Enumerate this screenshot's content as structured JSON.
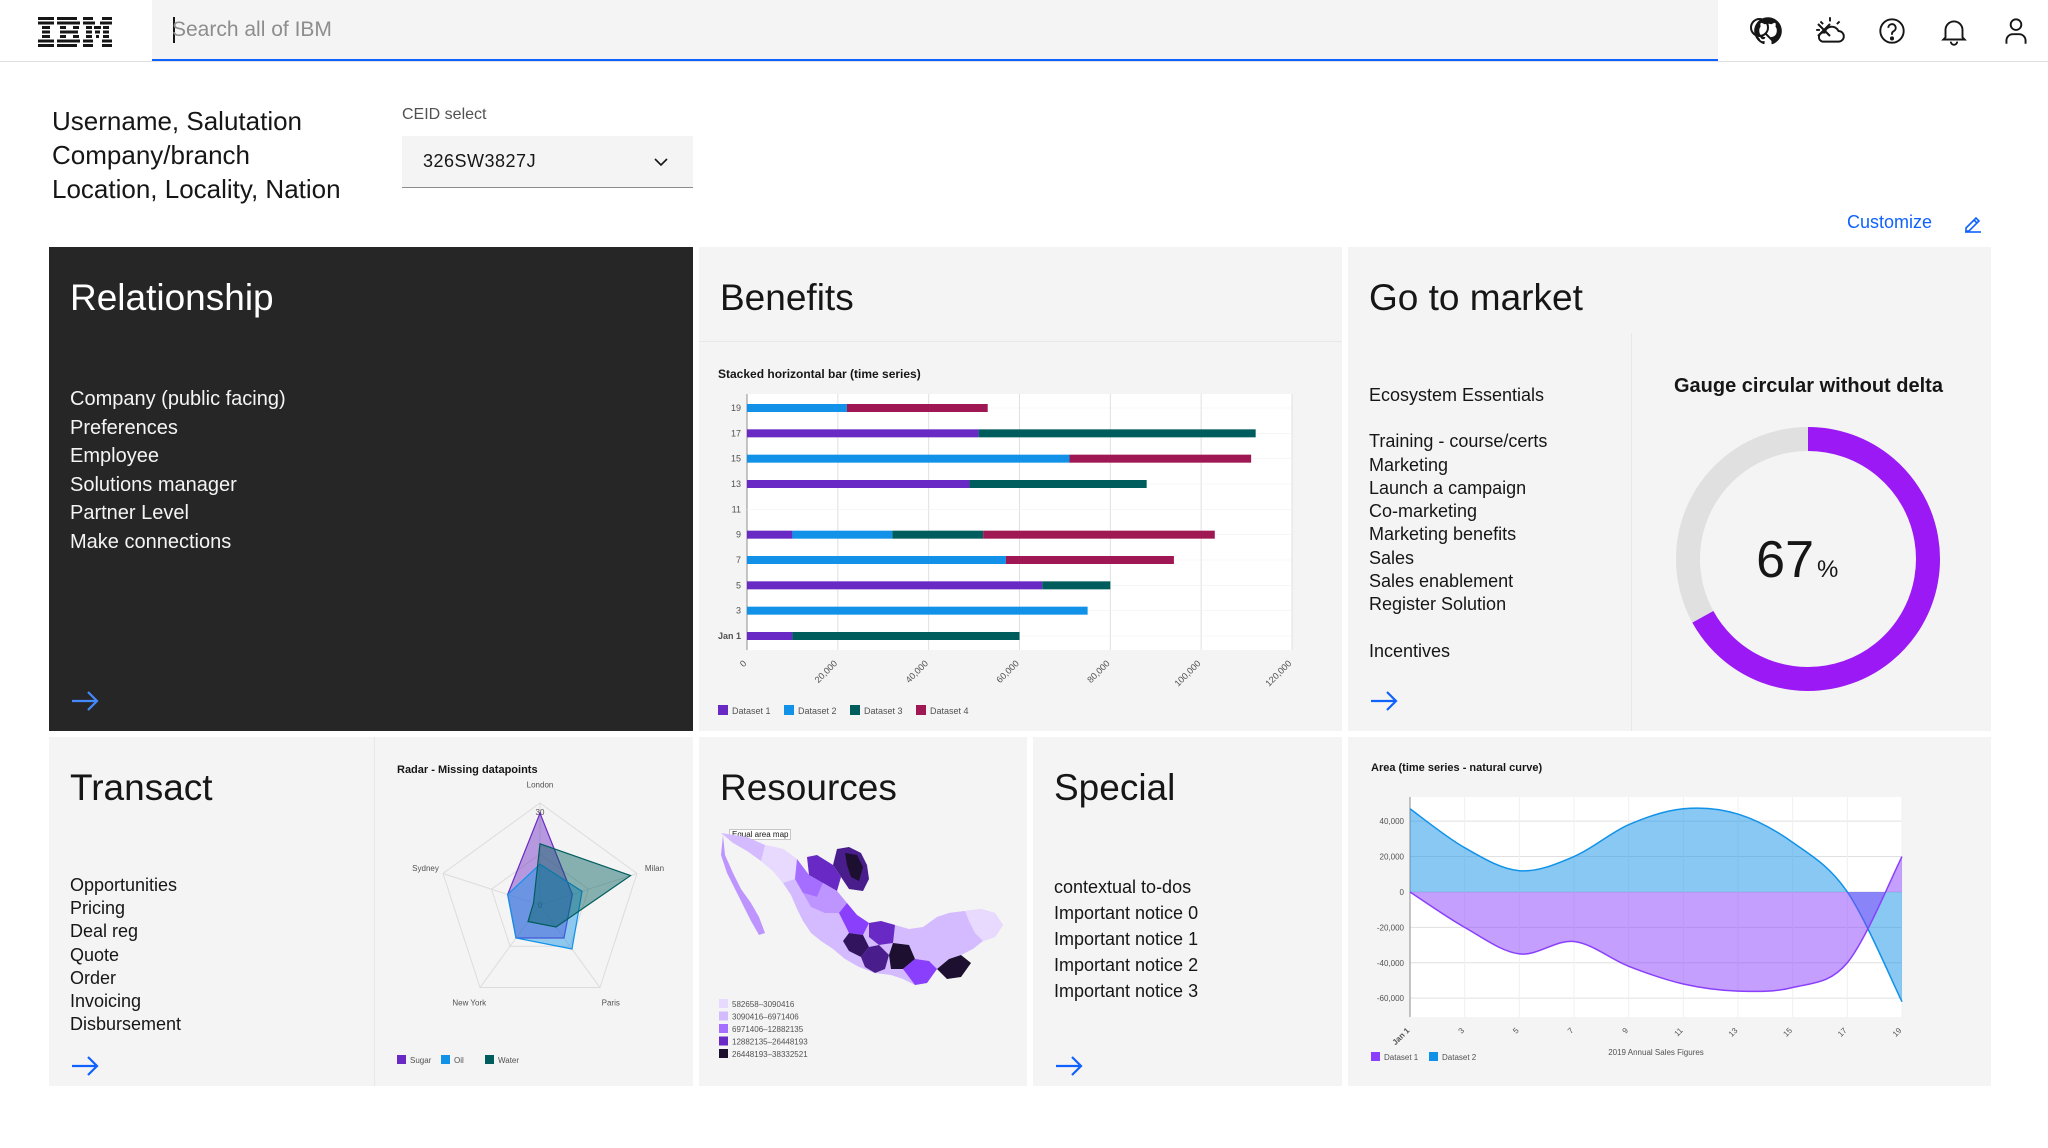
{
  "header": {
    "brand": "IBM",
    "search_placeholder": "Search all of IBM",
    "icons": [
      "search-icon",
      "close-icon",
      "github-icon",
      "weather-icon",
      "help-icon",
      "notification-icon",
      "user-icon"
    ]
  },
  "profile": {
    "line1": "Username, Salutation",
    "line2": "Company/branch",
    "line3": "Location, Locality, Nation"
  },
  "ceid": {
    "label": "CEID select",
    "value": "326SW3827J"
  },
  "customize": {
    "label": "Customize"
  },
  "colors": {
    "accent": "#0f62fe",
    "purple": "#6929c4",
    "blue": "#1192e8",
    "teal": "#005d5d",
    "magenta": "#9f1853",
    "dark_tile": "#262626",
    "gauge": "#9b19f5"
  },
  "tiles": {
    "relationship": {
      "title": "Relationship",
      "items": [
        "Company (public facing)",
        "Preferences",
        "Employee",
        "Solutions manager",
        "Partner Level",
        "Make connections"
      ]
    },
    "benefits": {
      "title": "Benefits"
    },
    "go_to_market": {
      "title": "Go to market",
      "items": [
        "Ecosystem Essentials",
        "Training - course/certs",
        "Marketing",
        "Launch a campaign",
        "Co-marketing",
        "Marketing benefits",
        "Sales",
        "Sales enablement",
        "Register Solution",
        "Incentives"
      ]
    },
    "transact": {
      "title": "Transact",
      "items": [
        "Opportunities",
        "Pricing",
        "Deal reg",
        "Quote",
        "Order",
        "Invoicing",
        "Disbursement"
      ]
    },
    "resources": {
      "title": "Resources"
    },
    "special": {
      "title": "Special",
      "items": [
        "contextual to-dos",
        "Important notice 0",
        "Important notice 1",
        "Important notice 2",
        "Important notice 3"
      ]
    }
  },
  "chart_data": [
    {
      "type": "bar",
      "orientation": "horizontal",
      "stacked": true,
      "title": "Stacked horizontal bar (time series)",
      "categories": [
        "Jan 1",
        "3",
        "5",
        "7",
        "9",
        "11",
        "13",
        "15",
        "17",
        "19"
      ],
      "xlim": [
        0,
        120000
      ],
      "x_ticks": [
        "0",
        "20,000",
        "40,000",
        "60,000",
        "80,000",
        "100,000",
        "120,000"
      ],
      "series": [
        {
          "name": "Dataset 1",
          "color": "#6929c4",
          "values": [
            10000,
            0,
            65000,
            0,
            10000,
            0,
            49000,
            0,
            51000,
            0
          ]
        },
        {
          "name": "Dataset 2",
          "color": "#1192e8",
          "values": [
            0,
            75000,
            0,
            57000,
            22000,
            0,
            0,
            71000,
            0,
            22000
          ]
        },
        {
          "name": "Dataset 3",
          "color": "#005d5d",
          "values": [
            50000,
            0,
            15000,
            0,
            20000,
            0,
            39000,
            0,
            61000,
            0
          ]
        },
        {
          "name": "Dataset 4",
          "color": "#9f1853",
          "values": [
            0,
            0,
            0,
            37000,
            51000,
            0,
            0,
            40000,
            0,
            31000
          ]
        }
      ],
      "legend": [
        "Dataset 1",
        "Dataset 2",
        "Dataset 3",
        "Dataset 4"
      ]
    },
    {
      "type": "gauge",
      "title": "Gauge circular without delta",
      "value": 67,
      "unit": "%"
    },
    {
      "type": "radar",
      "title": "Radar - Missing datapoints",
      "axes": [
        "London",
        "Milan",
        "Paris",
        "New York",
        "Sydney"
      ],
      "max_label": "30",
      "center_label": "0",
      "series": [
        {
          "name": "Sugar",
          "color": "#6929c4",
          "values": [
            27,
            10,
            12,
            12,
            10
          ]
        },
        {
          "name": "Oil",
          "color": "#1192e8",
          "values": [
            12,
            13,
            16,
            12,
            10
          ]
        },
        {
          "name": "Water",
          "color": "#005d5d",
          "values": [
            18,
            28,
            8,
            6,
            2
          ]
        }
      ],
      "legend": [
        "Sugar",
        "Oil",
        "Water"
      ]
    },
    {
      "type": "map",
      "title": "Equal area map",
      "legend": [
        "582658–3090416",
        "3090416–6971406",
        "6971406–12882135",
        "12882135–26448193",
        "26448193–38332521"
      ]
    },
    {
      "type": "area",
      "title": "Area (time series - natural curve)",
      "xlabel": "2019 Annual Sales Figures",
      "x": [
        "Jan 1",
        "3",
        "5",
        "7",
        "9",
        "11",
        "13",
        "15",
        "17",
        "19"
      ],
      "y_ticks": [
        "40,000",
        "20,000",
        "0",
        "-20,000",
        "-40,000",
        "-60,000"
      ],
      "ylim": [
        -65000,
        48000
      ],
      "series": [
        {
          "name": "Dataset 1",
          "color": "#8a3ffc",
          "values": [
            0,
            -20000,
            -35000,
            -28000,
            -42000,
            -52000,
            -56000,
            -54000,
            -40000,
            20000
          ]
        },
        {
          "name": "Dataset 2",
          "color": "#1192e8",
          "values": [
            47000,
            25000,
            12000,
            20000,
            38000,
            47000,
            44000,
            28000,
            0,
            -62000
          ]
        }
      ],
      "legend": [
        "Dataset 1",
        "Dataset 2"
      ]
    }
  ]
}
